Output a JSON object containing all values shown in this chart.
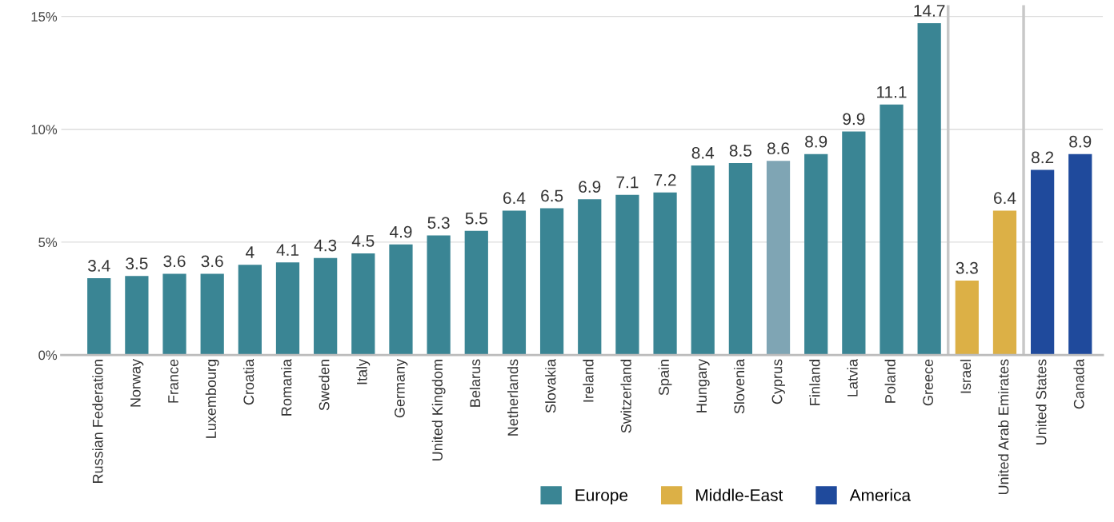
{
  "chart_data": {
    "type": "bar",
    "categories": [
      "Russian Federation",
      "Norway",
      "France",
      "Luxembourg",
      "Croatia",
      "Romania",
      "Sweden",
      "Italy",
      "Germany",
      "United Kingdom",
      "Belarus",
      "Netherlands",
      "Slovakia",
      "Ireland",
      "Switzerland",
      "Spain",
      "Hungary",
      "Slovenia",
      "Cyprus",
      "Finland",
      "Latvia",
      "Poland",
      "Greece",
      "Israel",
      "United Arab Emirates",
      "United States",
      "Canada"
    ],
    "series": [
      {
        "name": "Europe",
        "color": "#3a8594",
        "colors": [
          "#3a8594",
          "#3a8594",
          "#3a8594",
          "#3a8594",
          "#3a8594",
          "#3a8594",
          "#3a8594",
          "#3a8594",
          "#3a8594",
          "#3a8594",
          "#3a8594",
          "#3a8594",
          "#3a8594",
          "#3a8594",
          "#3a8594",
          "#3a8594",
          "#3a8594",
          "#3a8594",
          "#7fa5b4",
          "#3a8594",
          "#3a8594",
          "#3a8594",
          "#3a8594",
          null,
          null,
          null,
          null
        ],
        "values": [
          3.4,
          3.5,
          3.6,
          3.6,
          4,
          4.1,
          4.3,
          4.5,
          4.9,
          5.3,
          5.5,
          6.4,
          6.5,
          6.9,
          7.1,
          7.2,
          8.4,
          8.5,
          8.6,
          8.9,
          9.9,
          11.1,
          14.7,
          null,
          null,
          null,
          null
        ]
      },
      {
        "name": "Middle-East",
        "color": "#dcb046",
        "values": [
          null,
          null,
          null,
          null,
          null,
          null,
          null,
          null,
          null,
          null,
          null,
          null,
          null,
          null,
          null,
          null,
          null,
          null,
          null,
          null,
          null,
          null,
          null,
          3.3,
          6.4,
          null,
          null
        ]
      },
      {
        "name": "America",
        "color": "#1f4a9c",
        "values": [
          null,
          null,
          null,
          null,
          null,
          null,
          null,
          null,
          null,
          null,
          null,
          null,
          null,
          null,
          null,
          null,
          null,
          null,
          null,
          null,
          null,
          null,
          null,
          null,
          null,
          8.2,
          8.9
        ]
      }
    ],
    "data_labels": true,
    "ylim": [
      0,
      15.5
    ],
    "yticks": [
      {
        "value": 0,
        "label": "0%"
      },
      {
        "value": 5,
        "label": "5%"
      },
      {
        "value": 10,
        "label": "10%"
      },
      {
        "value": 15,
        "label": "15%"
      }
    ],
    "grid": "y",
    "legend": "bottom right"
  }
}
